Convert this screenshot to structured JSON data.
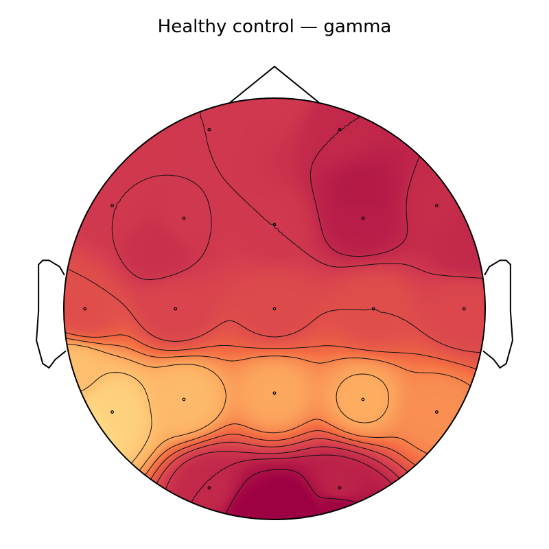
{
  "chart_data": {
    "type": "heatmap",
    "title": "Healthy control — gamma",
    "colormap": "Spectral (red part)",
    "colors": {
      "high": "#9e0142",
      "mid": "#f46d43",
      "low": "#fee08b",
      "outline": "#000000"
    },
    "sensors": [
      {
        "x": -0.31,
        "y": 0.85,
        "value": 0.45
      },
      {
        "x": 0.31,
        "y": 0.85,
        "value": 0.55
      },
      {
        "x": -0.77,
        "y": 0.49,
        "value": 0.45
      },
      {
        "x": -0.43,
        "y": 0.43,
        "value": 0.45
      },
      {
        "x": 0.0,
        "y": 0.4,
        "value": 0.45
      },
      {
        "x": 0.42,
        "y": 0.43,
        "value": 0.62
      },
      {
        "x": 0.77,
        "y": 0.49,
        "value": 0.52
      },
      {
        "x": -0.9,
        "y": 0.0,
        "value": 0.3
      },
      {
        "x": -0.47,
        "y": 0.0,
        "value": 0.37
      },
      {
        "x": 0.0,
        "y": 0.0,
        "value": 0.33
      },
      {
        "x": 0.47,
        "y": 0.0,
        "value": 0.3
      },
      {
        "x": 0.9,
        "y": 0.0,
        "value": 0.35
      },
      {
        "x": -0.77,
        "y": -0.49,
        "value": -0.4
      },
      {
        "x": -0.43,
        "y": -0.43,
        "value": -0.25
      },
      {
        "x": 0.0,
        "y": -0.4,
        "value": -0.15
      },
      {
        "x": 0.42,
        "y": -0.43,
        "value": -0.17
      },
      {
        "x": 0.77,
        "y": -0.49,
        "value": -0.05
      },
      {
        "x": -0.31,
        "y": -0.85,
        "value": 0.55
      },
      {
        "x": 0.31,
        "y": -0.85,
        "value": 0.58
      }
    ],
    "extra_points": [
      {
        "x": 0.08,
        "y": -1.0,
        "value": 0.95
      },
      {
        "x": -0.1,
        "y": -0.97,
        "value": 0.8
      },
      {
        "x": 0.3,
        "y": -0.95,
        "value": 0.78
      },
      {
        "x": -0.95,
        "y": -0.3,
        "value": -0.28
      },
      {
        "x": -0.85,
        "y": -0.55,
        "value": -0.45
      },
      {
        "x": 0.0,
        "y": 1.0,
        "value": 0.45
      },
      {
        "x": 0.42,
        "y": 0.55,
        "value": 0.64
      },
      {
        "x": -0.55,
        "y": 0.28,
        "value": 0.5
      },
      {
        "x": 0.92,
        "y": 0.3,
        "value": 0.55
      }
    ],
    "vmin": -0.5,
    "vmax": 0.8,
    "contour_levels": [
      -0.3,
      -0.15,
      0.0,
      0.15,
      0.3,
      0.45,
      0.55,
      0.7
    ]
  }
}
